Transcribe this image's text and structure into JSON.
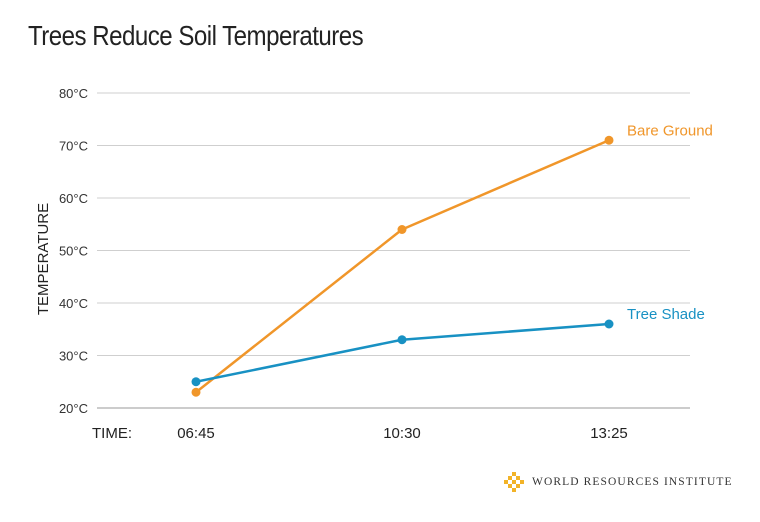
{
  "title": "Trees Reduce Soil Temperatures",
  "branding": {
    "logo_text": "WORLD RESOURCES INSTITUTE",
    "logo_icon": "wri-logo-icon"
  },
  "chart_data": {
    "type": "line",
    "title": "Trees Reduce Soil Temperatures",
    "ylabel": "TEMPERATURE",
    "xlabel": "TIME:",
    "x": [
      "06:45",
      "10:30",
      "13:25"
    ],
    "ylim": [
      20,
      80
    ],
    "yticks": [
      20,
      30,
      40,
      50,
      60,
      70,
      80
    ],
    "ytick_labels": [
      "20°C",
      "30°C",
      "40°C",
      "50°C",
      "60°C",
      "70°C",
      "80°C"
    ],
    "grid": true,
    "series": [
      {
        "name": "Bare Ground",
        "values": [
          23,
          54,
          71
        ],
        "color": "#F0962A"
      },
      {
        "name": "Tree Shade",
        "values": [
          25,
          33,
          36
        ],
        "color": "#1891C3"
      }
    ]
  }
}
